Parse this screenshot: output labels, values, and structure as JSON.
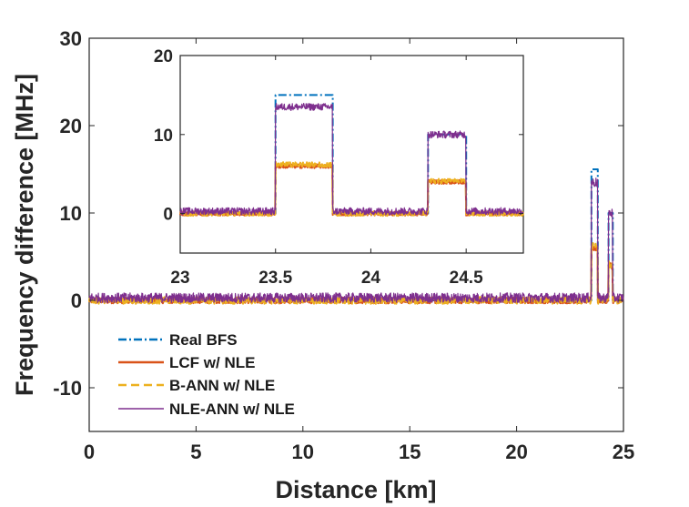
{
  "chart_data": [
    {
      "type": "line",
      "panel": "main",
      "xlabel": "Distance [km]",
      "ylabel": "Frequency difference [MHz]",
      "xlim": [
        0,
        25
      ],
      "ylim": [
        -15,
        30
      ],
      "xticks": [
        "0",
        "5",
        "10",
        "15",
        "20",
        "25"
      ],
      "yticks": [
        "-10",
        "0",
        "10",
        "20",
        "30"
      ],
      "legend_position": "bottom-left",
      "series": [
        {
          "name": "Real BFS",
          "color": "#0072BD",
          "style": "dash-dot",
          "x": [
            0,
            23.5,
            23.5,
            23.8,
            23.8,
            24.3,
            24.3,
            24.5,
            24.5,
            25
          ],
          "y": [
            0,
            0,
            15,
            15,
            0,
            0,
            10,
            10,
            0,
            0
          ]
        },
        {
          "name": "LCF w/ NLE",
          "color": "#D95319",
          "style": "solid",
          "x": [
            0,
            23.5,
            23.5,
            23.8,
            23.8,
            24.3,
            24.3,
            24.5,
            24.5,
            25
          ],
          "y": [
            0,
            0,
            6,
            6,
            0,
            0,
            4,
            4,
            0,
            0
          ]
        },
        {
          "name": "B-ANN w/ NLE",
          "color": "#EDB120",
          "style": "dashed",
          "x": [
            0,
            23.5,
            23.5,
            23.8,
            23.8,
            24.3,
            24.3,
            24.5,
            24.5,
            25
          ],
          "y": [
            0,
            0,
            6.2,
            6.2,
            0,
            0,
            4.1,
            4.1,
            0,
            0
          ]
        },
        {
          "name": "NLE-ANN w/ NLE",
          "color": "#7E2F8E",
          "style": "solid",
          "x": [
            0,
            23.5,
            23.5,
            23.8,
            23.8,
            24.3,
            24.3,
            24.5,
            24.5,
            25
          ],
          "y": [
            0.3,
            0.3,
            13.5,
            13.5,
            0.3,
            0.3,
            10,
            10,
            0.3,
            0.3
          ]
        }
      ]
    },
    {
      "type": "line",
      "panel": "inset",
      "xlim": [
        23,
        24.8
      ],
      "ylim": [
        -5,
        20
      ],
      "xticks": [
        "23",
        "23.5",
        "24",
        "24.5"
      ],
      "yticks": [
        "0",
        "10",
        "20"
      ]
    }
  ],
  "legend": {
    "items": [
      "Real BFS",
      "LCF w/ NLE",
      "B-ANN w/ NLE",
      "NLE-ANN w/ NLE"
    ]
  }
}
